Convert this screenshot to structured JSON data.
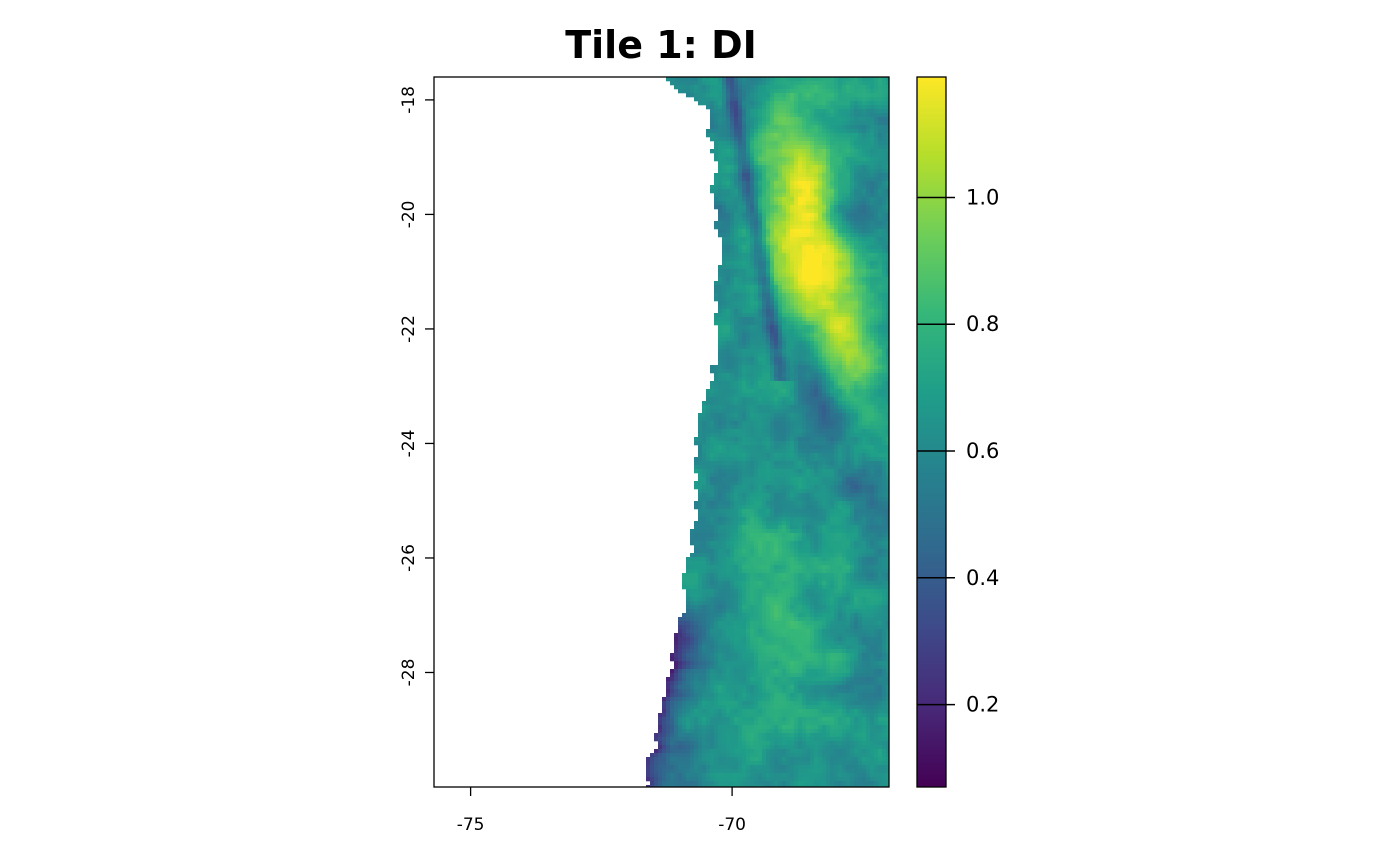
{
  "title": "Tile 1: DI",
  "chart_data": {
    "type": "heatmap",
    "title": "Tile 1: DI",
    "x_ticks": [
      {
        "value": -75,
        "label": "-75"
      },
      {
        "value": -70,
        "label": "-70"
      }
    ],
    "y_ticks": [
      {
        "value": -18,
        "label": "-18"
      },
      {
        "value": -20,
        "label": "-20"
      },
      {
        "value": -22,
        "label": "-22"
      },
      {
        "value": -24,
        "label": "-24"
      },
      {
        "value": -26,
        "label": "-26"
      },
      {
        "value": -28,
        "label": "-28"
      }
    ],
    "xlim": [
      -75.7,
      -67.0
    ],
    "ylim": [
      -30.0,
      -17.6
    ],
    "colorbar": {
      "range": [
        0.07,
        1.19
      ],
      "ticks": [
        {
          "value": 0.2,
          "label": "0.2"
        },
        {
          "value": 0.4,
          "label": "0.4"
        },
        {
          "value": 0.6,
          "label": "0.6"
        },
        {
          "value": 0.8,
          "label": "0.8"
        },
        {
          "value": 1.0,
          "label": "1.0"
        }
      ],
      "colormap": "viridis"
    },
    "grid": false,
    "no_data_color": "#ffffff"
  },
  "colors": {
    "viridis_stops": [
      "#440154",
      "#482878",
      "#3e4989",
      "#31688e",
      "#26828e",
      "#1f9e89",
      "#35b779",
      "#6ece58",
      "#b5de2b",
      "#fde725"
    ]
  }
}
